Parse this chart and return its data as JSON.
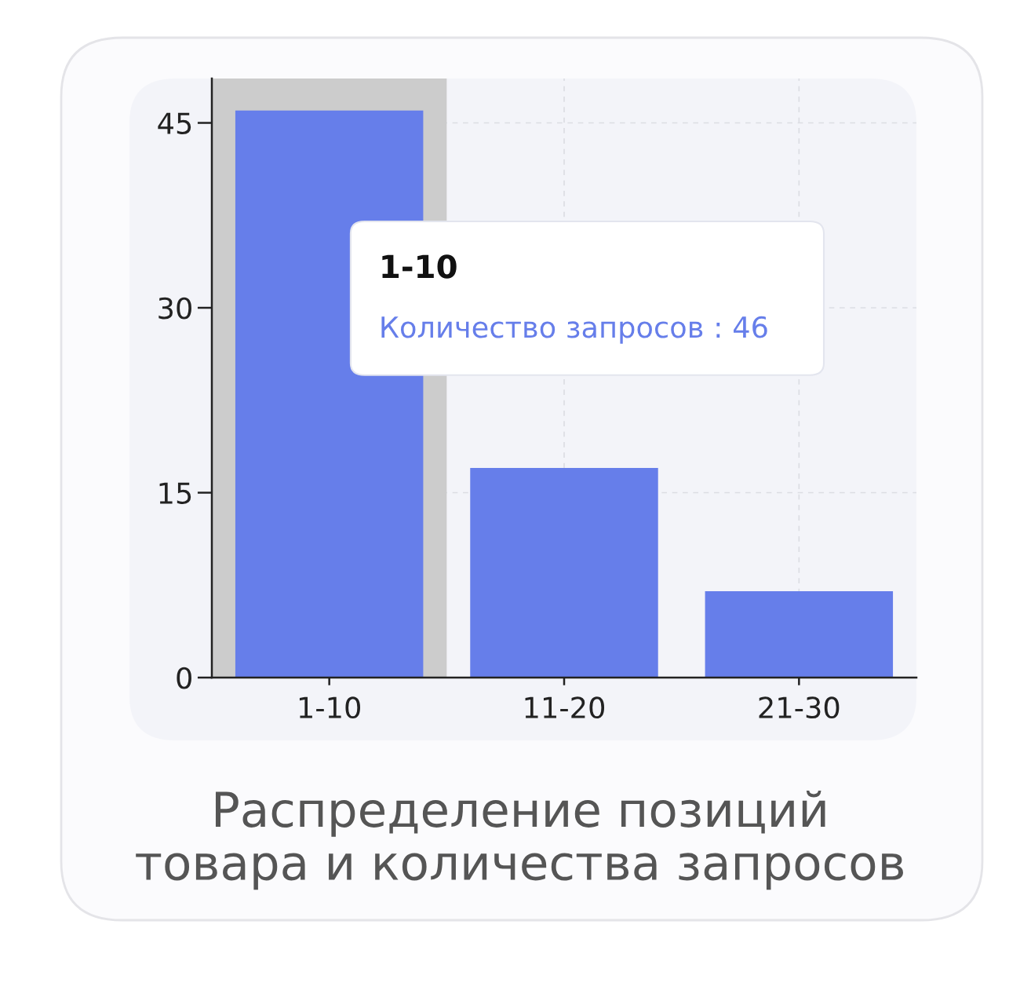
{
  "chart_data": {
    "type": "bar",
    "title": "Распределение позиций\nтовара и количества запросов",
    "categories": [
      "1-10",
      "11-20",
      "21-30"
    ],
    "series": [
      {
        "color": "#667eea",
        "values": [
          46,
          17,
          7
        ]
      }
    ],
    "ylim": [
      0,
      48.6
    ],
    "yticks": [
      0,
      15,
      30,
      45
    ],
    "grid": true,
    "bands": [
      {
        "axis": "x",
        "from": "1-10",
        "to": "1-10",
        "color": "#cccccc"
      }
    ],
    "annotations": [
      "1-10",
      "Количество запросов : 46"
    ]
  }
}
